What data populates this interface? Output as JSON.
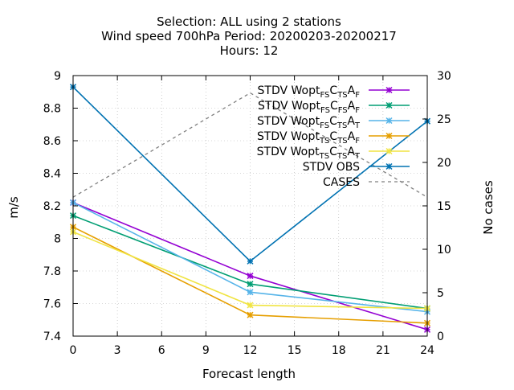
{
  "chart_data": {
    "type": "line",
    "title_lines": [
      "Selection: ALL using     2 stations",
      "Wind speed 700hPa   Period: 20200203-20200217",
      "Hours:  12"
    ],
    "xlabel": "Forecast length",
    "ylabel": "m/s",
    "y2label": "No cases",
    "x": [
      0,
      12,
      24
    ],
    "xlim": [
      0,
      24
    ],
    "xticks": [
      0,
      3,
      6,
      9,
      12,
      15,
      18,
      21,
      24
    ],
    "ylim": [
      7.4,
      9.0
    ],
    "yticks": [
      7.4,
      7.6,
      7.8,
      8,
      8.2,
      8.4,
      8.6,
      8.8,
      9
    ],
    "y2lim": [
      0,
      30
    ],
    "y2ticks": [
      0,
      5,
      10,
      15,
      20,
      25,
      30
    ],
    "grid": "dashed",
    "legend_position": "top-right",
    "series": [
      {
        "legend": {
          "pre": "STDV Wopt",
          "parts": [
            [
              "FS",
              "sub"
            ],
            [
              "C",
              ""
            ],
            [
              "TS",
              "sub"
            ],
            [
              "A",
              ""
            ],
            [
              "F",
              "sub"
            ]
          ]
        },
        "color": "#9400d3",
        "axis": "y1",
        "values": [
          8.22,
          7.77,
          7.44
        ]
      },
      {
        "legend": {
          "pre": "STDV Wopt",
          "parts": [
            [
              "FS",
              "sub"
            ],
            [
              "C",
              ""
            ],
            [
              "FS",
              "sub"
            ],
            [
              "A",
              ""
            ],
            [
              "F",
              "sub"
            ]
          ]
        },
        "color": "#009e73",
        "axis": "y1",
        "values": [
          8.14,
          7.72,
          7.57
        ]
      },
      {
        "legend": {
          "pre": "STDV Wopt",
          "parts": [
            [
              "FS",
              "sub"
            ],
            [
              "C",
              ""
            ],
            [
              "TS",
              "sub"
            ],
            [
              "A",
              ""
            ],
            [
              "T",
              "sub"
            ]
          ]
        },
        "color": "#56b4e9",
        "axis": "y1",
        "values": [
          8.22,
          7.67,
          7.55
        ]
      },
      {
        "legend": {
          "pre": "STDV Wopt",
          "parts": [
            [
              "TS",
              "sub"
            ],
            [
              "C",
              ""
            ],
            [
              "TS",
              "sub"
            ],
            [
              "A",
              ""
            ],
            [
              "F",
              "sub"
            ]
          ]
        },
        "color": "#e69f00",
        "axis": "y1",
        "values": [
          8.07,
          7.53,
          7.48
        ]
      },
      {
        "legend": {
          "pre": "STDV Wopt",
          "parts": [
            [
              "TS",
              "sub"
            ],
            [
              "C",
              ""
            ],
            [
              "TS",
              "sub"
            ],
            [
              "A",
              ""
            ],
            [
              "T",
              "sub"
            ]
          ]
        },
        "color": "#f0e442",
        "axis": "y1",
        "values": [
          8.04,
          7.59,
          7.57
        ]
      },
      {
        "legend": {
          "pre": "STDV OBS",
          "parts": []
        },
        "color": "#0072b2",
        "axis": "y1",
        "values": [
          8.93,
          7.86,
          8.72
        ]
      },
      {
        "legend": {
          "pre": "CASES",
          "parts": []
        },
        "color": "#808080",
        "axis": "y2",
        "dashed": true,
        "values": [
          16,
          28,
          16
        ]
      }
    ]
  }
}
